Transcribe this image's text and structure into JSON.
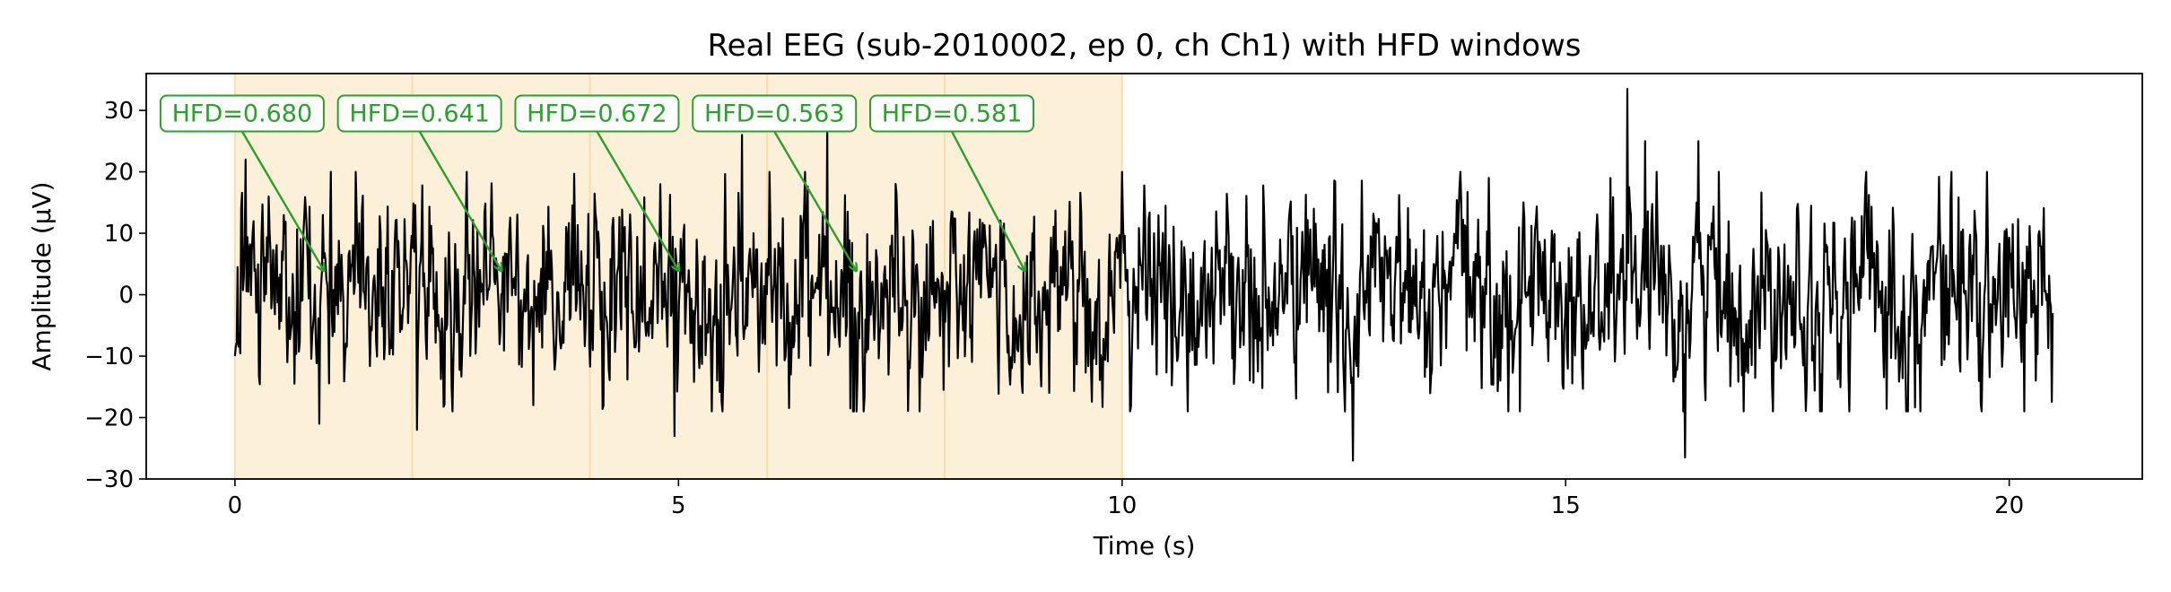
{
  "chart_data": {
    "type": "line",
    "title": "Real EEG (sub-2010002, ep 0, ch Ch1) with HFD windows",
    "xlabel": "Time (s)",
    "ylabel": "Amplitude (µV)",
    "xlim": [
      -1.0,
      21.5
    ],
    "ylim": [
      -30,
      36
    ],
    "xticks": [
      0,
      5,
      10,
      15,
      20
    ],
    "yticks": [
      -30,
      -20,
      -10,
      0,
      10,
      20,
      30
    ],
    "grid": false,
    "signal": {
      "duration_s": 20.5,
      "samples": 2048,
      "color": "#000000",
      "peaks": [
        {
          "t": 0.12,
          "v": 22.0
        },
        {
          "t": 0.95,
          "v": -21.0
        },
        {
          "t": 2.05,
          "v": -22.0
        },
        {
          "t": 4.95,
          "v": -23.0
        },
        {
          "t": 5.72,
          "v": 26.0
        },
        {
          "t": 6.68,
          "v": 28.0
        },
        {
          "t": 12.6,
          "v": -27.0
        },
        {
          "t": 15.7,
          "v": 33.5
        },
        {
          "t": 15.9,
          "v": 25.0
        },
        {
          "t": 16.35,
          "v": -26.5
        },
        {
          "t": 16.5,
          "v": 25.0
        },
        {
          "t": 20.3,
          "v": -14.0
        }
      ]
    },
    "windows": [
      {
        "start": 0,
        "end": 2,
        "hfd_label": "HFD=0.680",
        "arrow_x": 1.0,
        "arrow_y": 4.0
      },
      {
        "start": 2,
        "end": 4,
        "hfd_label": "HFD=0.641",
        "arrow_x": 3.0,
        "arrow_y": 4.0
      },
      {
        "start": 4,
        "end": 6,
        "hfd_label": "HFD=0.672",
        "arrow_x": 5.0,
        "arrow_y": 4.0
      },
      {
        "start": 6,
        "end": 8,
        "hfd_label": "HFD=0.563",
        "arrow_x": 7.0,
        "arrow_y": 4.0
      },
      {
        "start": 8,
        "end": 10,
        "hfd_label": "HFD=0.581",
        "arrow_x": 8.9,
        "arrow_y": 4.0
      }
    ],
    "colors": {
      "window_fill": "#fdf0d8",
      "window_edge": "#f8deae",
      "annotation": "#2ca02c"
    }
  }
}
